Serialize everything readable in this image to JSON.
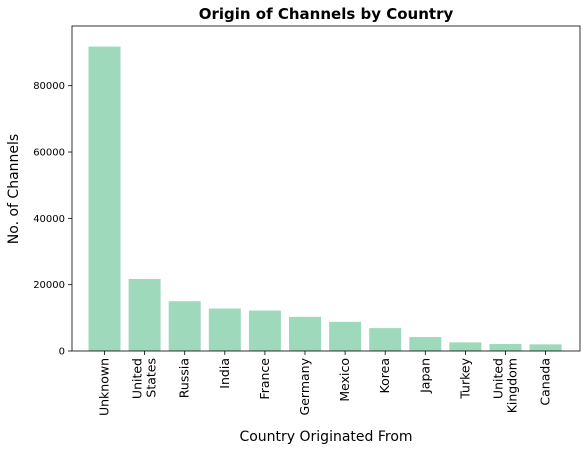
{
  "chart_data": {
    "type": "bar",
    "title": "Origin of Channels by Country",
    "xlabel": "Country Originated From",
    "ylabel": "No. of Channels",
    "categories": [
      [
        "Unknown"
      ],
      [
        "United",
        "States"
      ],
      [
        "Russia"
      ],
      [
        "India"
      ],
      [
        "France"
      ],
      [
        "Germany"
      ],
      [
        "Mexico"
      ],
      [
        "Korea"
      ],
      [
        "Japan"
      ],
      [
        "Turkey"
      ],
      [
        "United",
        "Kingdom"
      ],
      [
        "Canada"
      ]
    ],
    "values": [
      91800,
      21700,
      15000,
      12800,
      12200,
      10300,
      8800,
      6900,
      4200,
      2600,
      2100,
      2000
    ],
    "ylim": [
      0,
      98000
    ],
    "yticks": [
      0,
      20000,
      40000,
      60000,
      80000
    ],
    "grid": false,
    "bar_color": "#9dd9ba"
  }
}
